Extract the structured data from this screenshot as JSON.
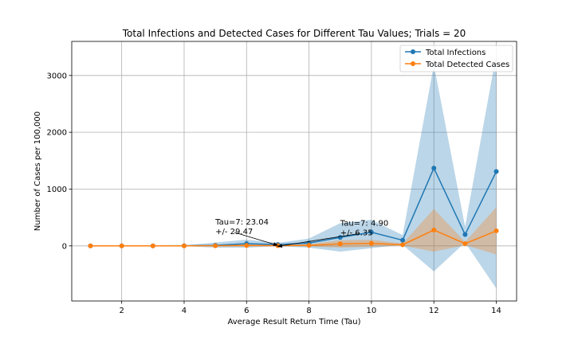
{
  "chart_data": {
    "type": "line",
    "title": "Total Infections and Detected Cases for Different Tau Values; Trials = 20",
    "xlabel": "Average Result Return Time (Tau)",
    "ylabel": "Number of Cases per 100,000",
    "xlim": [
      0.4,
      14.65
    ],
    "ylim": [
      -970,
      3600
    ],
    "xticks": [
      2,
      4,
      6,
      8,
      10,
      12,
      14
    ],
    "yticks": [
      0,
      1000,
      2000,
      3000
    ],
    "grid": true,
    "legend_position": "top-right",
    "x": [
      1,
      2,
      3,
      4,
      5,
      6,
      7,
      8,
      9,
      10,
      11,
      12,
      13,
      14
    ],
    "series": [
      {
        "name": "Total Infections",
        "color": "#1f77b4",
        "band_color": "#1f77b4",
        "values": [
          0,
          1,
          1,
          2,
          10,
          40,
          23.04,
          50,
          150,
          240,
          100,
          1370,
          200,
          1310
        ],
        "lower": [
          -2,
          -2,
          -3,
          -5,
          -30,
          -30,
          -6.43,
          -30,
          -100,
          -40,
          20,
          -450,
          60,
          -750
        ],
        "upper": [
          2,
          4,
          5,
          9,
          60,
          110,
          52.51,
          130,
          400,
          460,
          190,
          3190,
          340,
          3380
        ]
      },
      {
        "name": "Total Detected Cases",
        "color": "#ff7f0e",
        "band_color": "#ff7f0e",
        "values": [
          0,
          0.5,
          0.5,
          1,
          3,
          8,
          4.9,
          10,
          35,
          45,
          20,
          280,
          40,
          265
        ],
        "lower": [
          -1,
          -1,
          -1,
          -2,
          -10,
          -12,
          -1.45,
          -10,
          -30,
          -15,
          5,
          -100,
          15,
          -150
        ],
        "upper": [
          1,
          2,
          2,
          4,
          16,
          28,
          11.25,
          30,
          100,
          110,
          40,
          650,
          70,
          680
        ]
      }
    ],
    "annotations": [
      {
        "line1": "Tau=7: 23.04",
        "line2": "+/- 29.47",
        "text_x": 5.0,
        "text_y": 210,
        "point_x": 7,
        "point_y": 23.04
      },
      {
        "line1": "Tau=7: 4.90",
        "line2": "+/- 6.35",
        "text_x": 9.0,
        "text_y": 190,
        "point_x": 7,
        "point_y": 4.9
      }
    ]
  }
}
